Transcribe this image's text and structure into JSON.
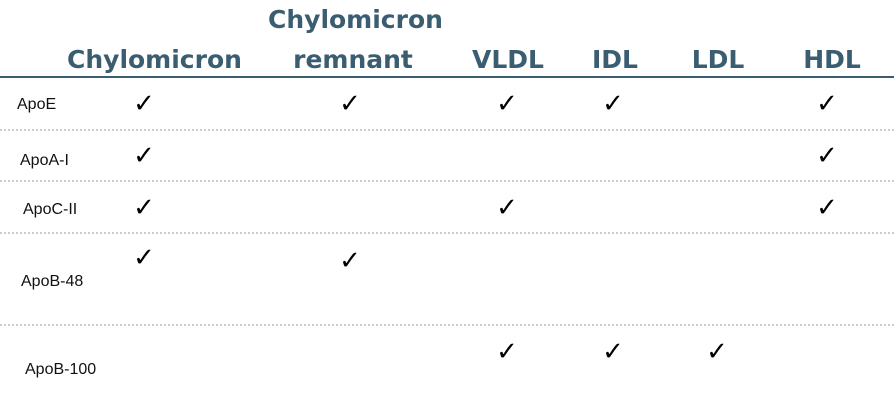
{
  "columns": [
    {
      "line1": "",
      "line2": "Chylomicron"
    },
    {
      "line1": "Chylomicron",
      "line2": "remnant"
    },
    {
      "line1": "",
      "line2": "VLDL"
    },
    {
      "line1": "",
      "line2": "IDL"
    },
    {
      "line1": "",
      "line2": "LDL"
    },
    {
      "line1": "",
      "line2": "HDL"
    }
  ],
  "check_mark": "✓",
  "rows": [
    {
      "label": "ApoE",
      "checks": [
        true,
        true,
        true,
        true,
        false,
        true
      ]
    },
    {
      "label": "ApoA-I",
      "checks": [
        true,
        false,
        false,
        false,
        false,
        true
      ]
    },
    {
      "label": "ApoC-II",
      "checks": [
        true,
        false,
        true,
        false,
        false,
        true
      ]
    },
    {
      "label": "ApoB-48",
      "checks": [
        true,
        true,
        false,
        false,
        false,
        false
      ]
    },
    {
      "label": "ApoB-100",
      "checks": [
        false,
        false,
        true,
        true,
        true,
        false
      ]
    }
  ],
  "colors": {
    "header_text": "#3b5d71",
    "header_rule": "#3b5d71",
    "row_separator": "#c9cdd2",
    "check": "#000000"
  }
}
